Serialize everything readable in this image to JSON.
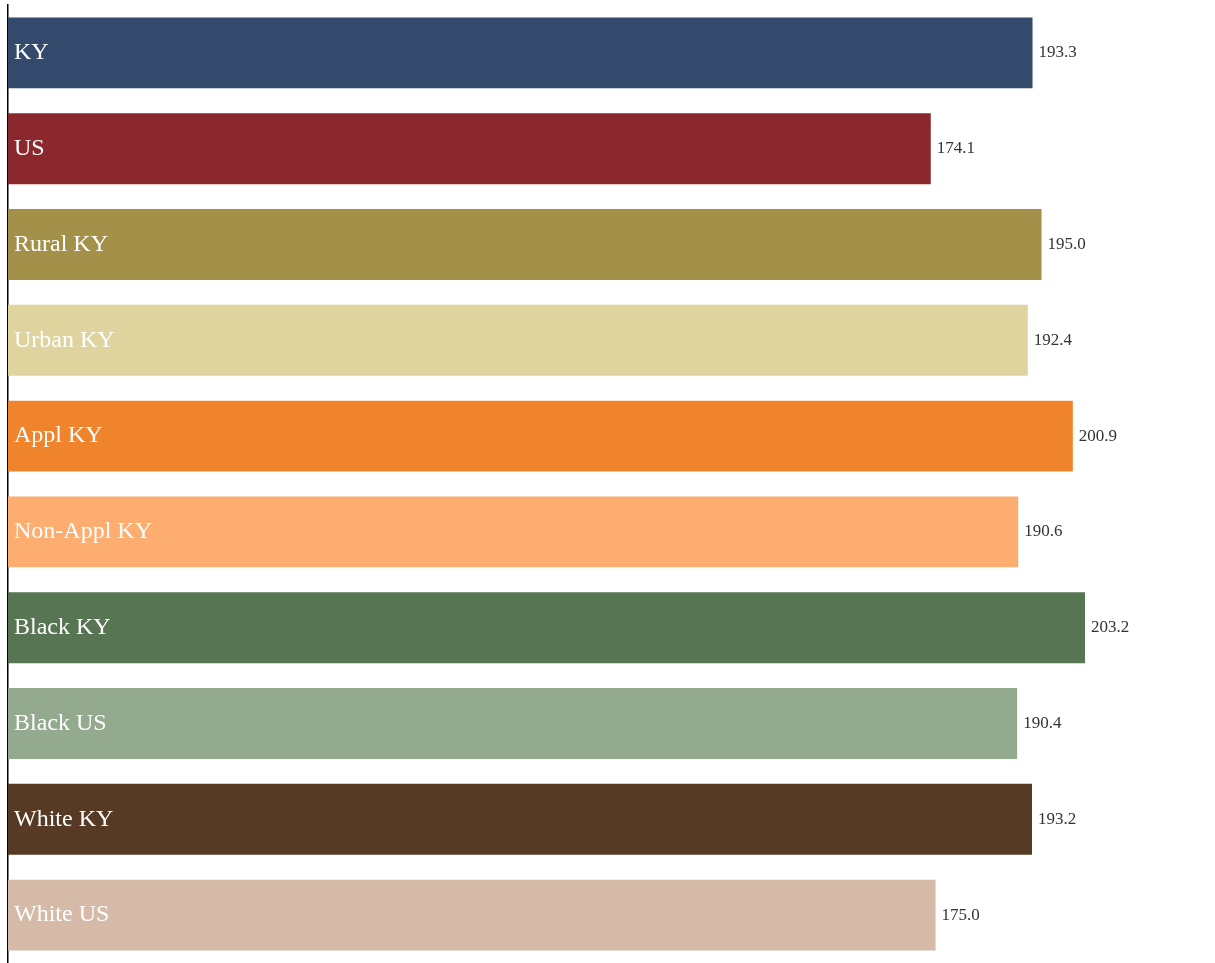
{
  "chart_data": {
    "type": "bar",
    "orientation": "horizontal",
    "categories": [
      "KY",
      "US",
      "Rural KY",
      "Urban KY",
      "Appl KY",
      "Non-Appl KY",
      "Black KY",
      "Black US",
      "White KY",
      "White US"
    ],
    "values": [
      193.3,
      174.1,
      195.0,
      192.4,
      200.9,
      190.6,
      203.2,
      190.4,
      193.2,
      175.0
    ],
    "value_labels": [
      "193.3",
      "174.1",
      "195.0",
      "192.4",
      "200.9",
      "190.6",
      "203.2",
      "190.4",
      "193.2",
      "175.0"
    ],
    "colors": [
      "#344a6c",
      "#8b282d",
      "#a39149",
      "#dfd49e",
      "#f0842c",
      "#fead70",
      "#577552",
      "#93aa8e",
      "#573a24",
      "#d4baa7"
    ],
    "legend": false
  }
}
